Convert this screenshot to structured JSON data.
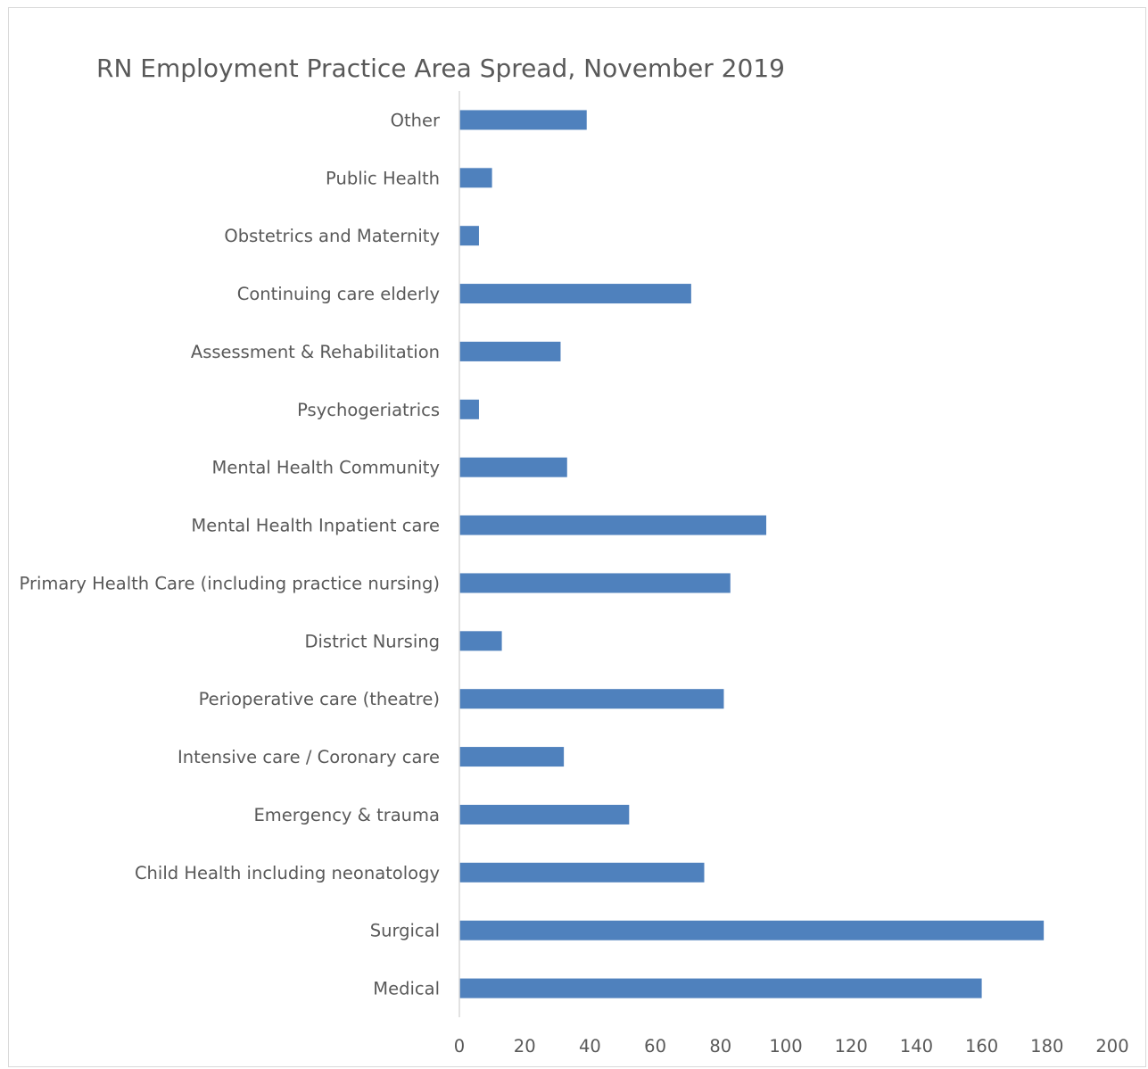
{
  "chart_data": {
    "type": "bar",
    "orientation": "horizontal",
    "title": "RN Employment Practice Area Spread, November 2019",
    "xlabel": "",
    "ylabel": "",
    "categories": [
      "Other",
      "Public Health",
      "Obstetrics and Maternity",
      "Continuing care elderly",
      "Assessment & Rehabilitation",
      "Psychogeriatrics",
      "Mental Health Community",
      "Mental Health Inpatient care",
      "Primary Health Care (including practice nursing)",
      "District Nursing",
      "Perioperative care (theatre)",
      "Intensive care / Coronary care",
      "Emergency & trauma",
      "Child Health including neonatology",
      "Surgical",
      "Medical"
    ],
    "values": [
      39,
      10,
      6,
      71,
      31,
      6,
      33,
      94,
      83,
      13,
      81,
      32,
      52,
      75,
      179,
      160
    ],
    "xlim": [
      0,
      200
    ],
    "xticks": [
      "0",
      "20",
      "40",
      "60",
      "80",
      "100",
      "120",
      "140",
      "160",
      "180",
      "200"
    ],
    "grid": false,
    "legend": "none",
    "bar_color": "#4f81bd",
    "axis_color": "#d9d9d9",
    "text_color": "#595959"
  }
}
